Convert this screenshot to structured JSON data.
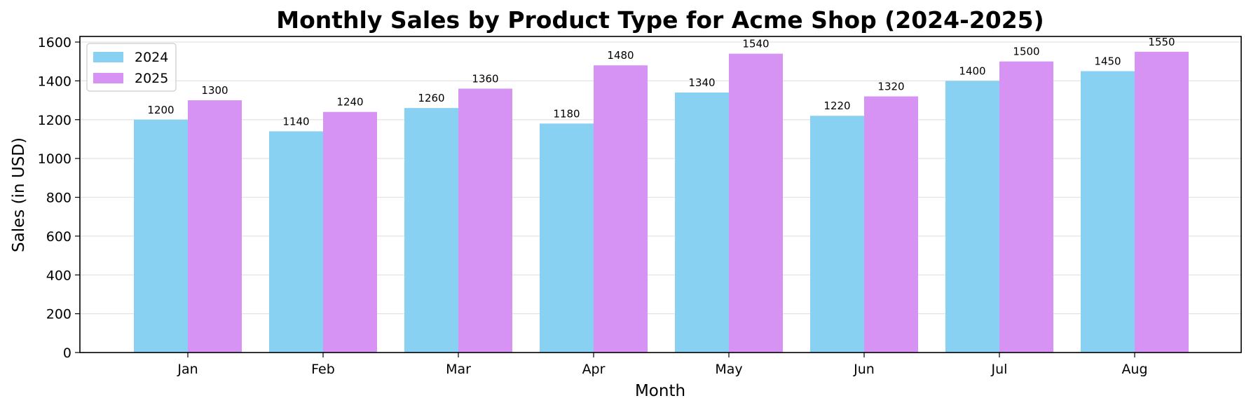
{
  "chart_data": {
    "type": "bar",
    "title": "Monthly Sales by Product Type for Acme Shop (2024-2025)",
    "xlabel": "Month",
    "ylabel": "Sales (in USD)",
    "categories": [
      "Jan",
      "Feb",
      "Mar",
      "Apr",
      "May",
      "Jun",
      "Jul",
      "Aug"
    ],
    "series": [
      {
        "name": "2024",
        "color": "#89d1f3",
        "values": [
          1200,
          1140,
          1260,
          1180,
          1340,
          1220,
          1400,
          1450
        ]
      },
      {
        "name": "2025",
        "color": "#d693f4",
        "values": [
          1300,
          1240,
          1360,
          1480,
          1540,
          1320,
          1500,
          1550
        ]
      }
    ],
    "ylim": [
      0,
      1600
    ],
    "yticks": [
      0,
      200,
      400,
      600,
      800,
      1000,
      1200,
      1400,
      1600
    ],
    "grid": "horizontal",
    "legend_position": "top-left",
    "data_labels": true
  }
}
